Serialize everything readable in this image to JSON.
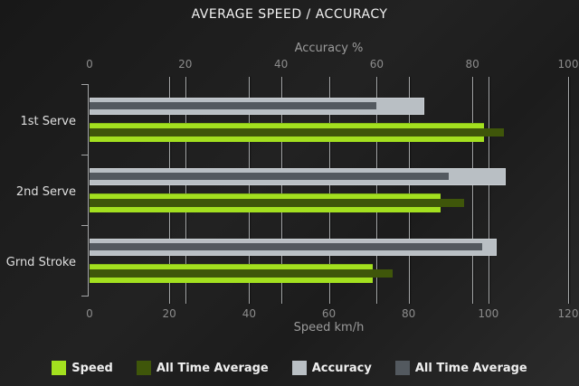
{
  "chart_data": {
    "type": "bar",
    "orientation": "horizontal",
    "title": "AVERAGE SPEED / ACCURACY",
    "categories": [
      "1st Serve",
      "2nd Serve",
      "Grnd Stroke"
    ],
    "axes": {
      "top": {
        "label": "Accuracy %",
        "ticks": [
          0,
          20,
          40,
          60,
          80,
          100
        ],
        "min": 0,
        "max": 100
      },
      "bottom": {
        "label": "Speed km/h",
        "ticks": [
          0,
          20,
          40,
          60,
          80,
          100,
          120
        ],
        "min": 0,
        "max": 120
      }
    },
    "grid": true,
    "legend_position": "bottom",
    "series": [
      {
        "name": "Speed",
        "axis": "bottom",
        "role": "main",
        "color": "#a3e01f",
        "values": [
          99,
          88,
          71
        ]
      },
      {
        "name": "All Time Average",
        "axis": "bottom",
        "role": "overlay",
        "color": "#3f560a",
        "values": [
          104,
          94,
          76
        ]
      },
      {
        "name": "Accuracy",
        "axis": "top",
        "role": "main",
        "color": "#b9bfc4",
        "values": [
          70,
          87,
          85
        ]
      },
      {
        "name": "All Time Average",
        "axis": "top",
        "role": "overlay",
        "color": "#53595f",
        "values": [
          60,
          75,
          82
        ]
      }
    ],
    "colors": {
      "background_dark": "#181818",
      "background_light": "#2b2b2b",
      "gridline": "#a4a6a7",
      "title_text": "#f2f2f2",
      "axis_text": "#8c8c8c",
      "category_text": "#dfdfdf",
      "legend_text": "#efefef"
    }
  }
}
